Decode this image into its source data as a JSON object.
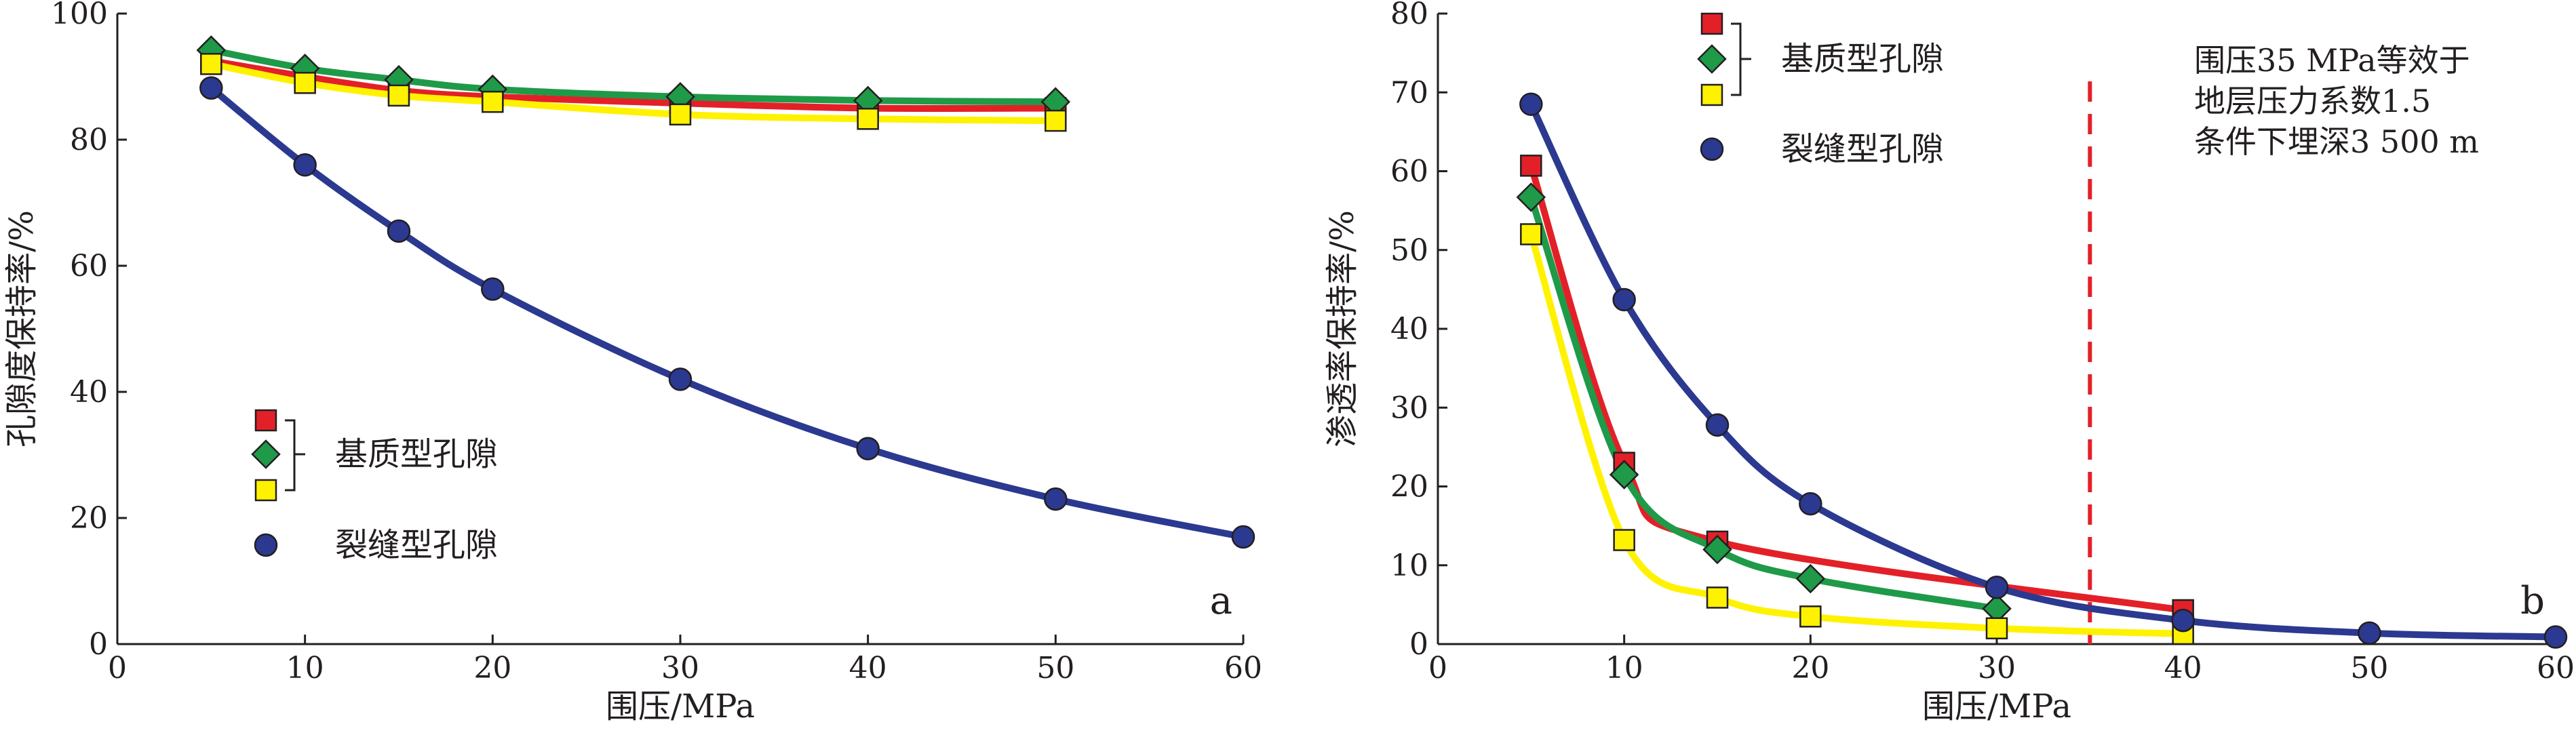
{
  "colors": {
    "red": "#e32028",
    "green": "#1f9a48",
    "yellow": "#fff200",
    "blue": "#2b3990",
    "dashed": "#e32028",
    "axis": "#231f20"
  },
  "chart_data": [
    {
      "type": "line",
      "panel_label": "a",
      "xlabel": "围压/MPa",
      "ylabel": "孔隙度保持率/%",
      "xlim": [
        0,
        60
      ],
      "ylim": [
        0,
        100
      ],
      "x_ticks": [
        0,
        10,
        20,
        30,
        40,
        50,
        60
      ],
      "y_ticks": [
        0,
        20,
        40,
        60,
        80,
        100
      ],
      "grid": false,
      "legend_placement": "lower-left",
      "legend": {
        "matrix_label": "基质型孔隙",
        "fracture_label": "裂缝型孔隙"
      },
      "series": [
        {
          "group": "matrix",
          "marker": "square",
          "color": "red",
          "x": [
            5,
            10,
            15,
            20,
            30,
            40,
            50
          ],
          "y": [
            92.5,
            90.0,
            87.8,
            86.8,
            85.8,
            85.0,
            85.0
          ]
        },
        {
          "group": "matrix",
          "marker": "diamond",
          "color": "green",
          "x": [
            5,
            10,
            15,
            20,
            30,
            40,
            50
          ],
          "y": [
            94.2,
            91.3,
            89.5,
            88.0,
            86.8,
            86.2,
            86.0
          ]
        },
        {
          "group": "matrix",
          "marker": "square",
          "color": "yellow",
          "x": [
            5,
            10,
            15,
            20,
            30,
            40,
            50
          ],
          "y": [
            92.0,
            89.0,
            87.0,
            86.0,
            84.0,
            83.3,
            83.0
          ]
        },
        {
          "group": "fracture",
          "marker": "circle",
          "color": "blue",
          "x": [
            5,
            10,
            15,
            20,
            30,
            40,
            50,
            60
          ],
          "y": [
            88.2,
            76.0,
            65.5,
            56.3,
            42.0,
            31.0,
            23.0,
            17.0
          ]
        }
      ]
    },
    {
      "type": "line",
      "panel_label": "b",
      "xlabel": "围压/MPa",
      "ylabel": "渗透率保持率/%",
      "xlim": [
        0,
        60
      ],
      "ylim": [
        0,
        80
      ],
      "x_ticks": [
        0,
        10,
        20,
        30,
        40,
        50,
        60
      ],
      "y_ticks": [
        0,
        10,
        20,
        30,
        40,
        50,
        60,
        70,
        80
      ],
      "grid": false,
      "legend_placement": "top-left",
      "legend": {
        "matrix_label": "基质型孔隙",
        "fracture_label": "裂缝型孔隙"
      },
      "reference_line": {
        "x": 35,
        "style": "dashed",
        "color": "dashed"
      },
      "annotation": [
        "围压35 MPa等效于",
        "地层压力系数1.5",
        "条件下埋深3 500 m"
      ],
      "series": [
        {
          "group": "matrix",
          "marker": "square",
          "color": "red",
          "x": [
            5,
            10,
            15,
            40
          ],
          "y": [
            60.7,
            23.0,
            13.0,
            4.3
          ]
        },
        {
          "group": "matrix",
          "marker": "diamond",
          "color": "green",
          "x": [
            5,
            10,
            15,
            20,
            30
          ],
          "y": [
            56.7,
            21.5,
            12.0,
            8.3,
            4.5
          ]
        },
        {
          "group": "matrix",
          "marker": "square",
          "color": "yellow",
          "x": [
            5,
            10,
            15,
            20,
            30,
            40
          ],
          "y": [
            52.0,
            13.2,
            5.9,
            3.5,
            2.0,
            1.3
          ]
        },
        {
          "group": "fracture",
          "marker": "circle",
          "color": "blue",
          "x": [
            5,
            10,
            15,
            20,
            30,
            40,
            50,
            60
          ],
          "y": [
            68.5,
            43.7,
            27.8,
            17.8,
            7.2,
            3.0,
            1.4,
            0.9
          ]
        }
      ]
    }
  ]
}
